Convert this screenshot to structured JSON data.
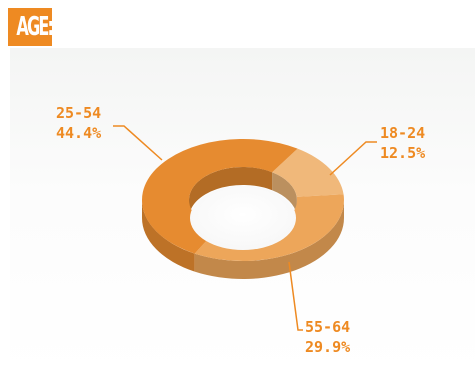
{
  "header": {
    "title": "AGE:"
  },
  "colors": {
    "accent": "#ee8a22"
  },
  "chart_data": {
    "type": "pie",
    "style": "donut",
    "categories": [
      "18-24",
      "55-64",
      "25-54"
    ],
    "values": [
      12.5,
      29.9,
      44.4
    ],
    "value_labels": [
      "12.5%",
      "29.9%",
      "44.4%"
    ],
    "colors": [
      "#f0b87a",
      "#eda65a",
      "#e68b30"
    ],
    "title": "",
    "legend": "none"
  }
}
